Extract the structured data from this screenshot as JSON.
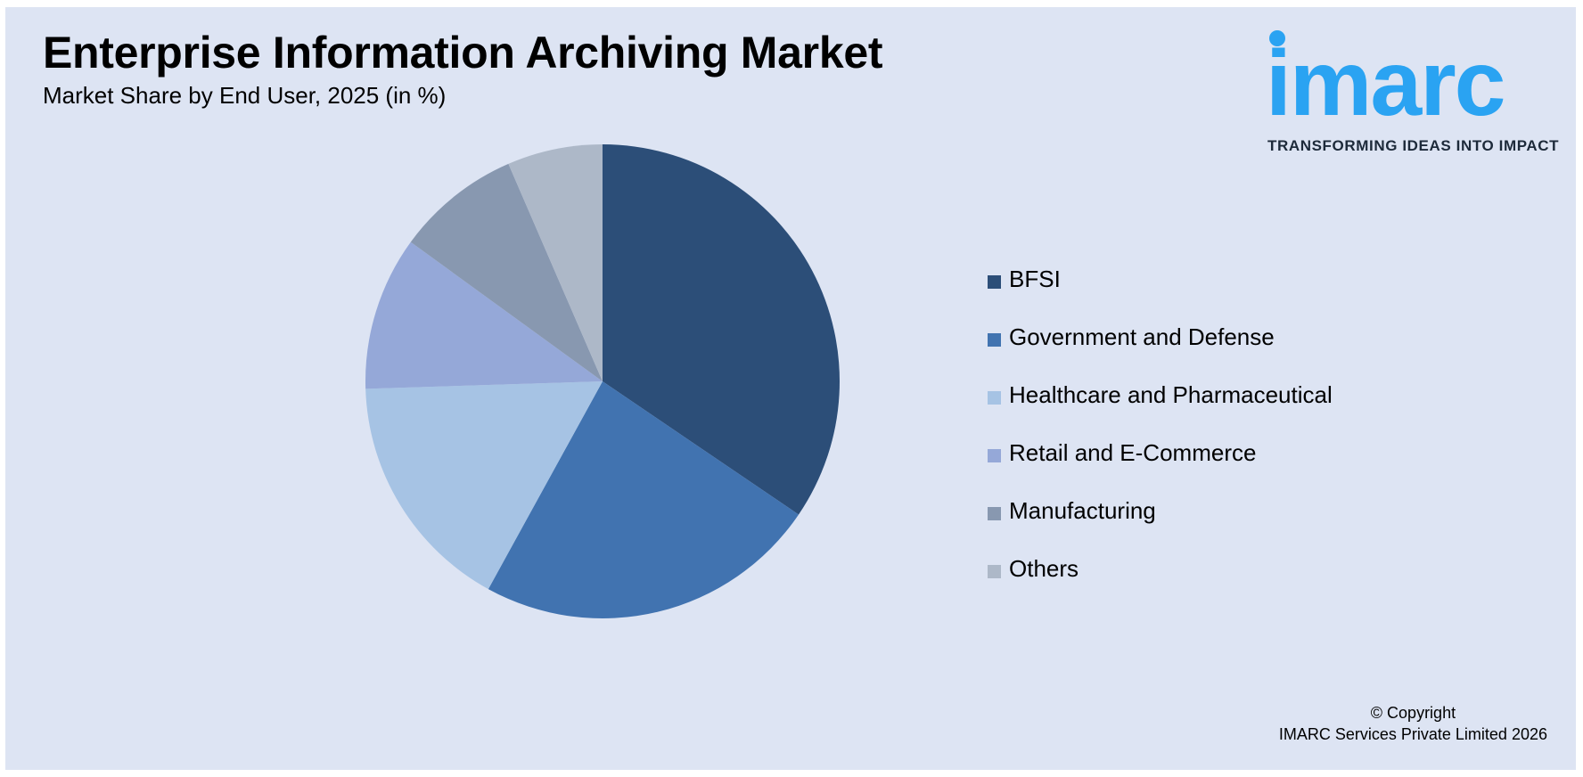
{
  "header": {
    "title": "Enterprise Information Archiving Market",
    "subtitle": "Market Share by End User, 2025 (in %)"
  },
  "logo": {
    "wordmark": "imarc",
    "tagline": "TRANSFORMING IDEAS INTO IMPACT",
    "color": "#2aa3f2"
  },
  "chart_data": {
    "type": "pie",
    "title": "Enterprise Information Archiving Market",
    "subtitle": "Market Share by End User, 2025 (in %)",
    "start_angle_deg": 0,
    "direction": "clockwise",
    "legend_position": "right",
    "slices": [
      {
        "label": "BFSI",
        "value": 34.5,
        "color": "#2c4e78"
      },
      {
        "label": "Government and Defense",
        "value": 23.5,
        "color": "#4173b0"
      },
      {
        "label": "Healthcare and Pharmaceutical",
        "value": 16.5,
        "color": "#a6c3e4"
      },
      {
        "label": "Retail and E-Commerce",
        "value": 10.5,
        "color": "#95a8d8"
      },
      {
        "label": "Manufacturing",
        "value": 8.5,
        "color": "#8898b0"
      },
      {
        "label": "Others",
        "value": 6.5,
        "color": "#adb8c8"
      }
    ]
  },
  "footer": {
    "copyright_line1": "© Copyright",
    "copyright_line2": "IMARC Services Private Limited 2026"
  }
}
